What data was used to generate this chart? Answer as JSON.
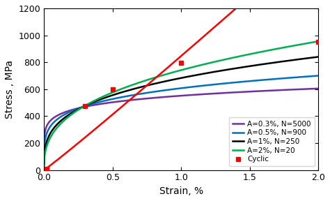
{
  "title": "",
  "xlabel": "Strain, %",
  "ylabel": "Stress , MPa",
  "xlim": [
    0,
    2.0
  ],
  "ylim": [
    0,
    1200
  ],
  "xticks": [
    0,
    0.5,
    1.0,
    1.5,
    2.0
  ],
  "yticks": [
    0,
    200,
    400,
    600,
    800,
    1000,
    1200
  ],
  "curves": [
    {
      "label": "A=0.3%, N=5000",
      "color": "#7030A0",
      "x1": 0.3,
      "y1": 470,
      "x2": 2.0,
      "y2": 605
    },
    {
      "label": "A=0.5%, N=900",
      "color": "#0070C0",
      "x1": 0.3,
      "y1": 475,
      "x2": 2.0,
      "y2": 700
    },
    {
      "label": "A=1%, N=250",
      "color": "#000000",
      "x1": 0.3,
      "y1": 477,
      "x2": 2.0,
      "y2": 840
    },
    {
      "label": "A=2%, N=20",
      "color": "#00B050",
      "x1": 0.3,
      "y1": 478,
      "x2": 2.0,
      "y2": 955
    }
  ],
  "cyclic_label": "Cyclic",
  "cyclic_color": "#FF0000",
  "cyclic_x": [
    0.02,
    0.3,
    0.5,
    1.0,
    2.0
  ],
  "cyclic_y": [
    10,
    475,
    600,
    795,
    950
  ],
  "legend_loc": "lower right",
  "figsize": [
    4.74,
    2.88
  ],
  "dpi": 100
}
